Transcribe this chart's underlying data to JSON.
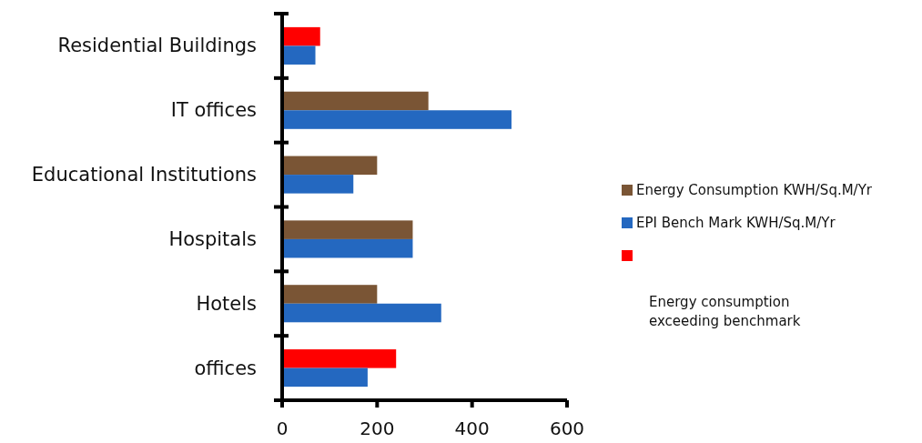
{
  "chart_data": {
    "type": "bar",
    "orientation": "horizontal",
    "categories": [
      "Residential Buildings",
      "IT offices",
      "Educational Institutions",
      "Hospitals",
      "Hotels",
      "offices"
    ],
    "series": [
      {
        "name": "Energy Consumption KWH/Sq.M/Yr",
        "color": "#7a5535",
        "colors": [
          "#ff0000",
          "#7a5535",
          "#7a5535",
          "#7a5535",
          "#7a5535",
          "#ff0000"
        ],
        "values": [
          80,
          308,
          200,
          275,
          200,
          240
        ]
      },
      {
        "name": "EPI Bench Mark KWH/Sq.M/Yr",
        "color": "#2468c0",
        "values": [
          70,
          483,
          150,
          275,
          335,
          180
        ]
      }
    ],
    "xlim": [
      0,
      600
    ],
    "xticks": [
      0,
      200,
      400,
      600
    ],
    "legend": "right",
    "annotations": [
      "Energy consumption exceeding benchmark"
    ]
  }
}
